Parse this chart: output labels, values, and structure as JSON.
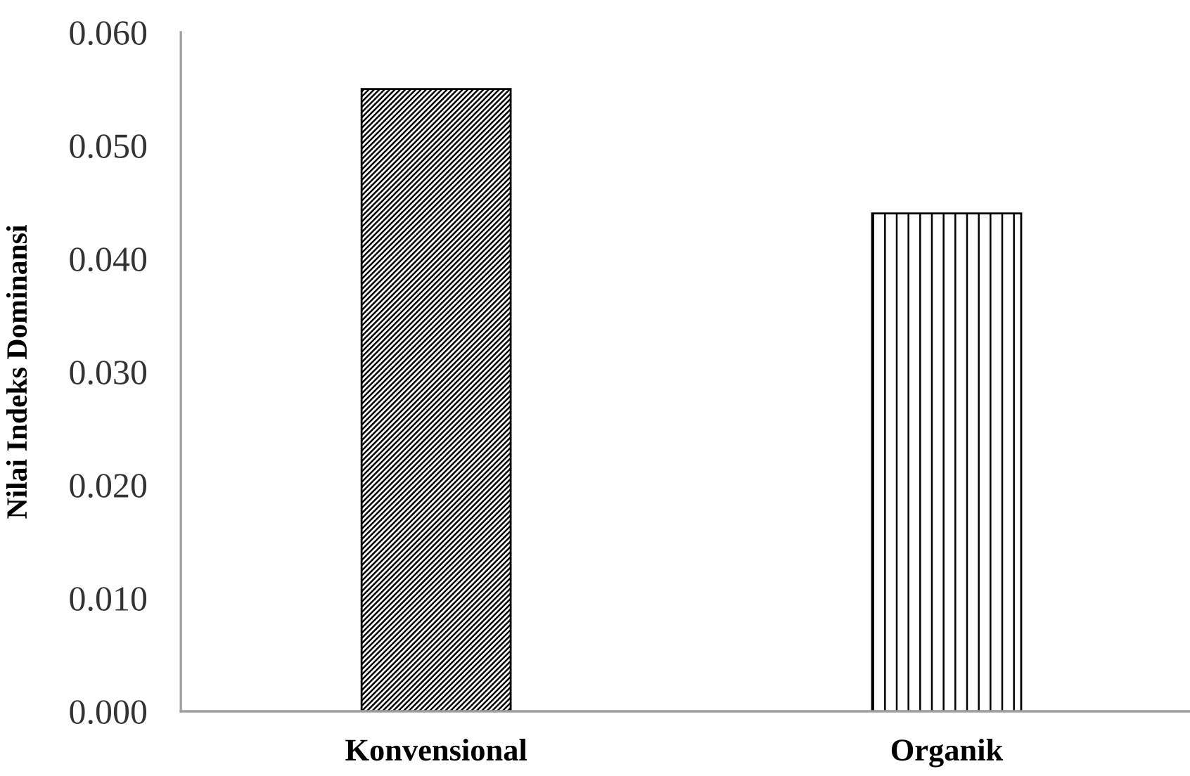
{
  "chart_data": {
    "type": "bar",
    "ylabel": "Nilai Indeks Dominansi",
    "categories": [
      "Konvensional",
      "Organik"
    ],
    "values": [
      0.055,
      0.044
    ],
    "colors": [
      "#000000",
      "#000000"
    ],
    "ylim": [
      0,
      0.06
    ],
    "yticks": [
      {
        "value": 0,
        "label": "0.000"
      },
      {
        "value": 0.01,
        "label": "0.010"
      },
      {
        "value": 0.02,
        "label": "0.020"
      },
      {
        "value": 0.03,
        "label": "0.030"
      },
      {
        "value": 0.04,
        "label": "0.040"
      },
      {
        "value": 0.05,
        "label": "0.050"
      },
      {
        "value": 0.06,
        "label": "0.060"
      }
    ],
    "grid": false
  }
}
